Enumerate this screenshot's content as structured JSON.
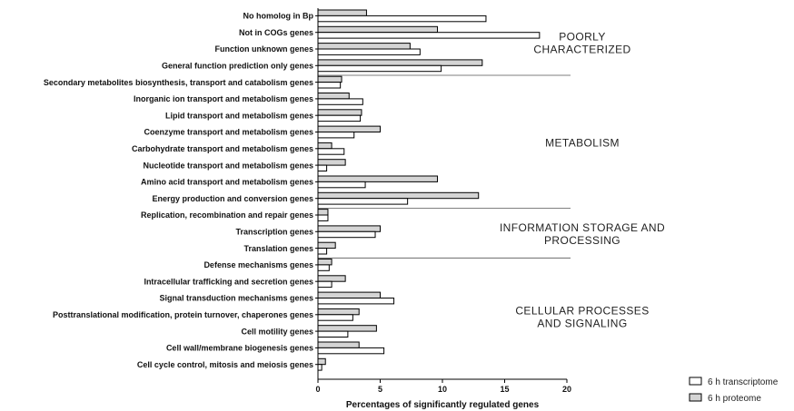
{
  "chart_data": {
    "type": "bar",
    "orientation": "horizontal",
    "xlabel": "Percentages of significantly regulated genes",
    "xlim": [
      0,
      20
    ],
    "xticks": [
      "0",
      "5",
      "10",
      "15",
      "20"
    ],
    "categories": [
      "No homolog in Bp",
      "Not in COGs genes",
      "Function unknown genes",
      "General function prediction only genes",
      "Secondary metabolites biosynthesis, transport and catabolism genes",
      "Inorganic ion transport and metabolism genes",
      "Lipid transport and metabolism genes",
      "Coenzyme transport and metabolism genes",
      "Carbohydrate transport and metabolism genes",
      "Nucleotide transport and metabolism genes",
      "Amino acid transport and metabolism genes",
      "Energy production and conversion genes",
      "Replication, recombination and repair genes",
      "Transcription genes",
      "Translation genes",
      "Defense mechanisms genes",
      "Intracellular trafficking and secretion genes",
      "Signal transduction mechanisms genes",
      "Posttranslational modification, protein turnover, chaperones genes",
      "Cell motility genes",
      "Cell wall/membrane biogenesis genes",
      "Cell cycle control, mitosis and meiosis genes"
    ],
    "series": [
      {
        "name": "6 h proteome",
        "color": "#d4d4d4",
        "values": [
          3.9,
          9.6,
          7.4,
          13.2,
          1.9,
          2.5,
          3.5,
          5.0,
          1.1,
          2.2,
          9.6,
          12.9,
          0.8,
          5.0,
          1.4,
          1.1,
          2.2,
          5.0,
          3.3,
          4.7,
          3.3,
          0.6
        ]
      },
      {
        "name": "6 h transcriptome",
        "color": "#ffffff",
        "values": [
          13.5,
          17.8,
          8.2,
          9.9,
          1.8,
          3.6,
          3.4,
          2.9,
          2.1,
          0.7,
          3.8,
          7.2,
          0.8,
          4.6,
          0.7,
          0.9,
          1.1,
          6.1,
          2.8,
          2.4,
          5.3,
          0.3
        ]
      }
    ],
    "groups": [
      {
        "lines": [
          "POORLY",
          "CHARACTERIZED"
        ],
        "first": 0,
        "last": 3
      },
      {
        "lines": [
          "METABOLISM"
        ],
        "first": 4,
        "last": 11
      },
      {
        "lines": [
          "INFORMATION STORAGE AND",
          "PROCESSING"
        ],
        "first": 12,
        "last": 14
      },
      {
        "lines": [
          "CELLULAR PROCESSES",
          "AND SIGNALING"
        ],
        "first": 15,
        "last": 21
      }
    ],
    "legend_position": "bottom-right",
    "grid": false
  }
}
